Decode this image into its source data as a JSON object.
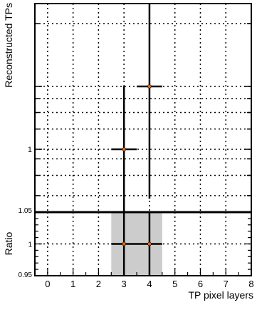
{
  "chart_data": [
    {
      "panel": "main",
      "type": "scatter",
      "ylabel": "Reconstructed TPs",
      "log_y": true,
      "grid": true,
      "ylim": [
        0.5,
        10
      ],
      "y_tick_labels": [
        {
          "value": 1,
          "label": "1"
        }
      ],
      "points": [
        {
          "x": 3,
          "y": 1.0,
          "x_err": 0.5,
          "y_low": 0.05,
          "y_high": 2.0
        },
        {
          "x": 4,
          "y": 2.0,
          "x_err": 0.5,
          "y_low": 0.58,
          "y_high": 5.3
        }
      ]
    },
    {
      "panel": "ratio",
      "type": "scatter",
      "ylabel": "Ratio",
      "xlabel": "TP pixel layers",
      "grid": true,
      "xlim": [
        -0.5,
        8
      ],
      "ylim": [
        0.95,
        1.05
      ],
      "x_tick_labels": [
        "0",
        "1",
        "2",
        "3",
        "4",
        "5",
        "6",
        "7",
        "8"
      ],
      "y_tick_labels": [
        {
          "value": 0.95,
          "label": "0.95"
        },
        {
          "value": 1,
          "label": "1"
        },
        {
          "value": 1.05,
          "label": "1.05"
        }
      ],
      "uncertainty_band": {
        "x_low": 2.5,
        "x_high": 4.5,
        "color": "#cccccc"
      },
      "points": [
        {
          "x": 3,
          "y": 1.0,
          "x_err": 0.5
        },
        {
          "x": 4,
          "y": 1.0,
          "x_err": 0.5
        }
      ]
    }
  ],
  "colors": {
    "marker": "#ff6600",
    "axis": "#000000",
    "band": "#cccccc"
  }
}
